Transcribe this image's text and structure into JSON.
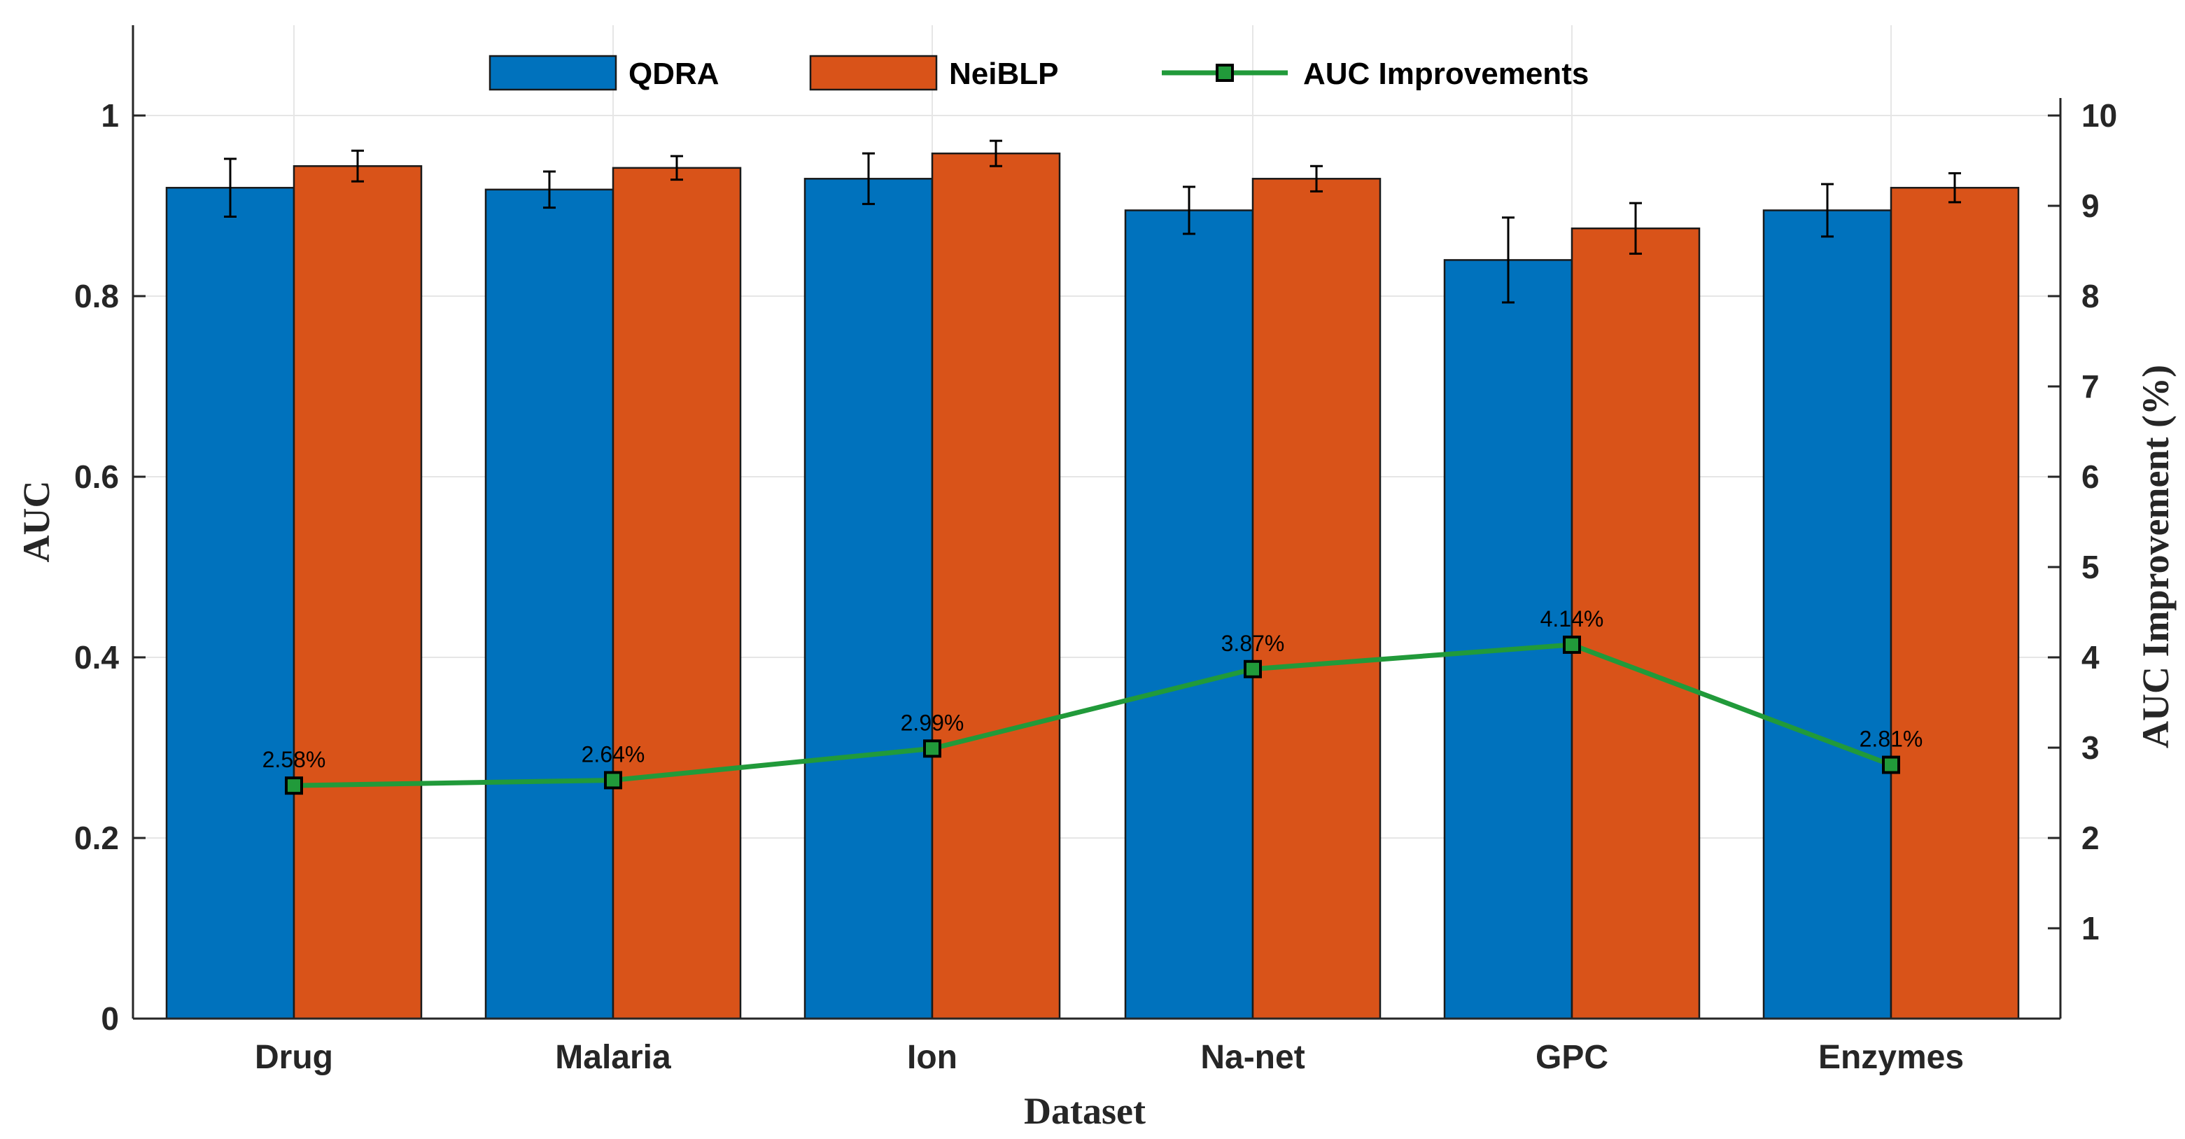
{
  "chart_data": {
    "type": "bar",
    "title": "",
    "xlabel": "Dataset",
    "ylabel": "AUC",
    "y2label": "AUC Improvement (%)",
    "categories": [
      "Drug",
      "Malaria",
      "Ion",
      "Na-net",
      "GPC",
      "Enzymes"
    ],
    "ylim": [
      0,
      1.1
    ],
    "yticks": [
      "0",
      "0.2",
      "0.4",
      "0.6",
      "0.8",
      "1"
    ],
    "y2lim": [
      0,
      11
    ],
    "y2ticks": [
      "1",
      "2",
      "3",
      "4",
      "5",
      "6",
      "7",
      "8",
      "9",
      "10"
    ],
    "grid": true,
    "legend_position": "top",
    "series": [
      {
        "name": "QDRA",
        "color": "#0072bd",
        "values": [
          0.92,
          0.918,
          0.93,
          0.895,
          0.84,
          0.895
        ],
        "errors": [
          0.032,
          0.02,
          0.028,
          0.026,
          0.047,
          0.029
        ]
      },
      {
        "name": "NeiBLP",
        "color": "#d95319",
        "values": [
          0.944,
          0.942,
          0.958,
          0.93,
          0.875,
          0.92
        ],
        "errors": [
          0.017,
          0.013,
          0.014,
          0.014,
          0.028,
          0.016
        ]
      }
    ],
    "line_series": {
      "name": "AUC Improvements",
      "color": "#219a3a",
      "axis": "right",
      "values": [
        2.58,
        2.64,
        2.99,
        3.87,
        4.14,
        2.81
      ],
      "labels": [
        "2.58%",
        "2.64%",
        "2.99%",
        "3.87%",
        "4.14%",
        "2.81%"
      ]
    }
  }
}
